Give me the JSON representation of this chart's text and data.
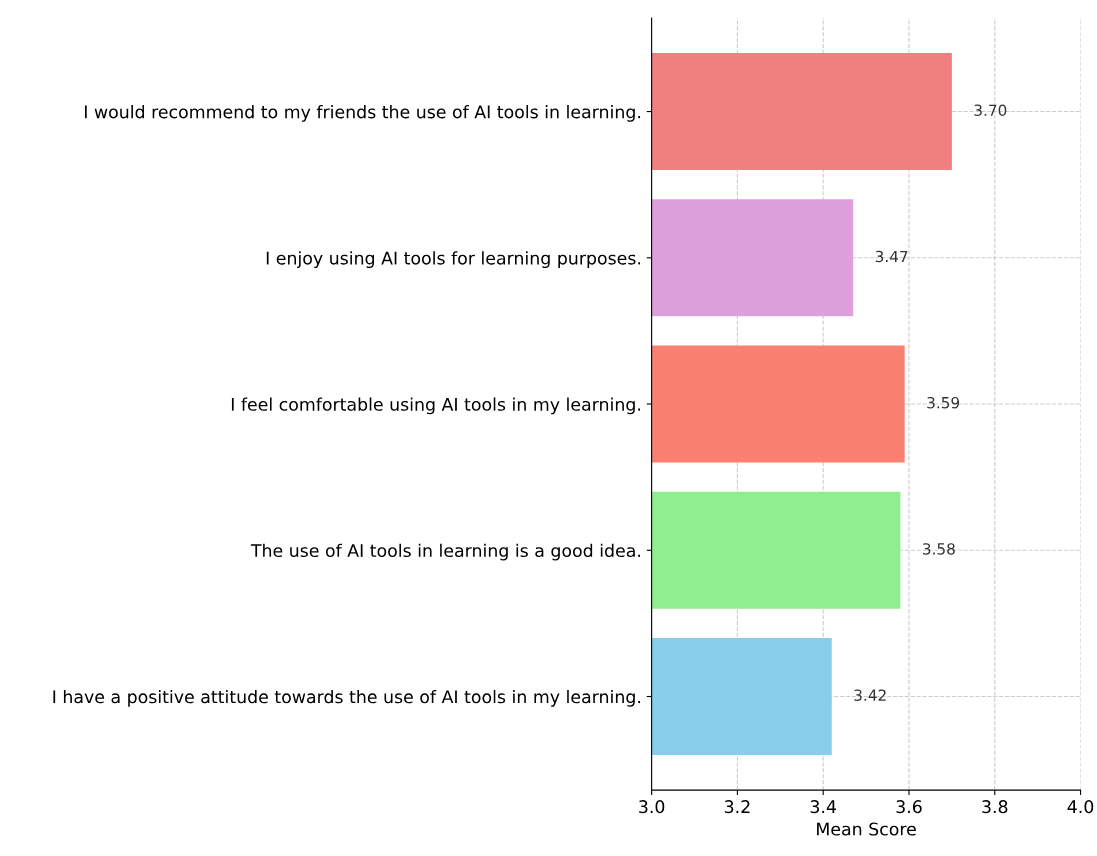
{
  "chart_data": {
    "type": "bar",
    "orientation": "horizontal",
    "xlabel": "Mean Score",
    "categories": [
      "I would recommend to my friends the use of AI tools in learning.",
      "I enjoy using AI tools for learning purposes.",
      "I feel comfortable using AI tools in my learning.",
      "The use of AI tools in learning is a good idea.",
      "I have a positive attitude towards the use of AI tools in my learning."
    ],
    "values": [
      3.7,
      3.47,
      3.59,
      3.58,
      3.42
    ],
    "value_labels": [
      "3.70",
      "3.47",
      "3.59",
      "3.58",
      "3.42"
    ],
    "colors": [
      "#f08080",
      "#dda0dd",
      "#fa8072",
      "#90ee90",
      "#87ceeb"
    ],
    "xlim": [
      3.0,
      4.0
    ],
    "xticks": [
      {
        "value": 3.0,
        "label": "3.0"
      },
      {
        "value": 3.2,
        "label": "3.2"
      },
      {
        "value": 3.4,
        "label": "3.4"
      },
      {
        "value": 3.6,
        "label": "3.6"
      },
      {
        "value": 3.8,
        "label": "3.8"
      },
      {
        "value": 4.0,
        "label": "4.0"
      }
    ],
    "grid": true
  }
}
